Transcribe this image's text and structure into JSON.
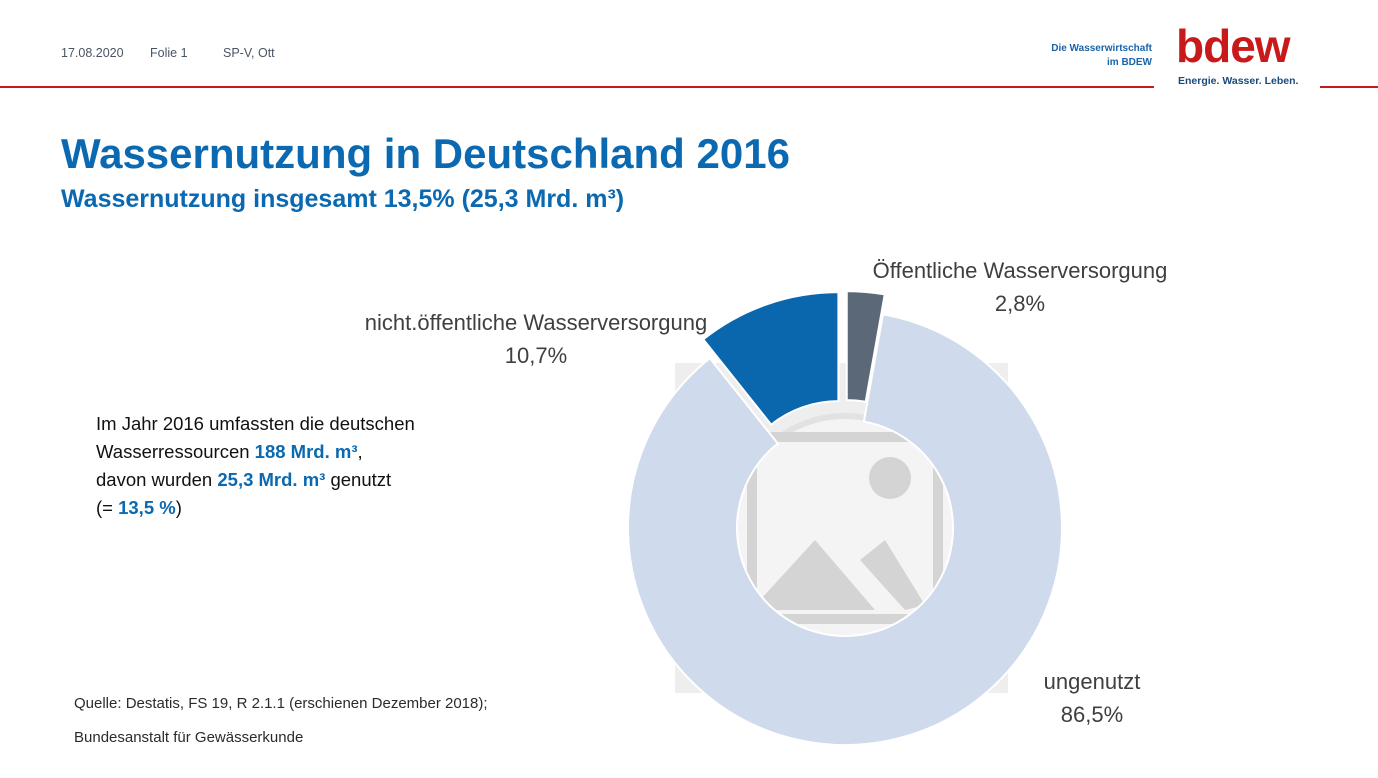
{
  "header": {
    "date": "17.08.2020",
    "slide": "Folie 1",
    "author": "SP-V, Ott",
    "tagline_line1": "Die Wasserwirtschaft",
    "tagline_line2": "im BDEW",
    "logo_text": "bdew",
    "logo_slogan": "Energie. Wasser. Leben."
  },
  "title": "Wassernutzung in Deutschland 2016",
  "subtitle": "Wassernutzung insgesamt 13,5% (25,3 Mrd. m³)",
  "info": {
    "line1": "Im Jahr 2016 umfassten die deutschen",
    "line2_prefix": "Wasserressourcen ",
    "line2_value": "188 Mrd. m³",
    "line2_suffix": ",",
    "line3_prefix": "davon wurden ",
    "line3_value": "25,3 Mrd. m³",
    "line3_suffix": " genutzt",
    "line4_prefix": "(= ",
    "line4_value": "13,5 %",
    "line4_suffix": ")"
  },
  "source": {
    "line1": "Quelle: Destatis, FS 19, R 2.1.1 (erschienen Dezember 2018);",
    "line2": "Bundesanstalt für Gewässerkunde"
  },
  "colors": {
    "brand_red": "#c8191b",
    "brand_blue": "#0a69b0",
    "unused": "#cfdaec",
    "non_public": "#0a66ad",
    "public": "#5a6877"
  },
  "chart_data": {
    "type": "pie",
    "variant": "donut",
    "categories": [
      "Öffentliche Wasserversorgung",
      "ungenutzt",
      "nicht.öffentliche Wasserversorgung"
    ],
    "values": [
      2.8,
      86.5,
      10.7
    ],
    "value_labels": [
      "2,8%",
      "86,5%",
      "10,7%"
    ],
    "colors": [
      "#5a6877",
      "#cfdaec",
      "#0a66ad"
    ],
    "exploded": [
      true,
      false,
      true
    ],
    "legend": "none"
  }
}
